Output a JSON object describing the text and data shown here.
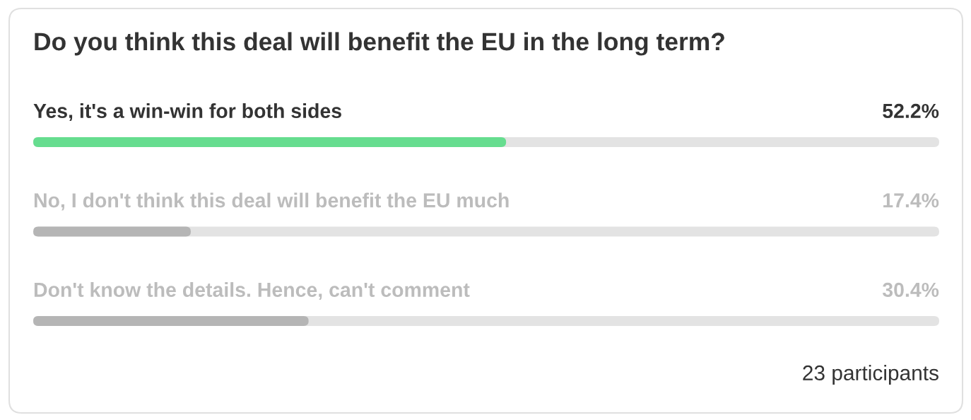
{
  "chart_data": {
    "type": "bar",
    "orientation": "horizontal",
    "title": "Do you think this deal will benefit the EU in the long term?",
    "categories": [
      "Yes, it's a win-win for both sides",
      "No, I don't think this deal will benefit the EU much",
      "Don't know the details. Hence, can't comment"
    ],
    "values": [
      52.2,
      17.4,
      30.4
    ],
    "colors": [
      "#66dd8f",
      "#b5b5b5",
      "#b5b5b5"
    ],
    "value_labels": [
      "52.2%",
      "17.4%",
      "30.4%"
    ],
    "xlim": [
      0,
      100
    ],
    "tick_labels": "y",
    "annotations": [
      "23 participants"
    ]
  }
}
